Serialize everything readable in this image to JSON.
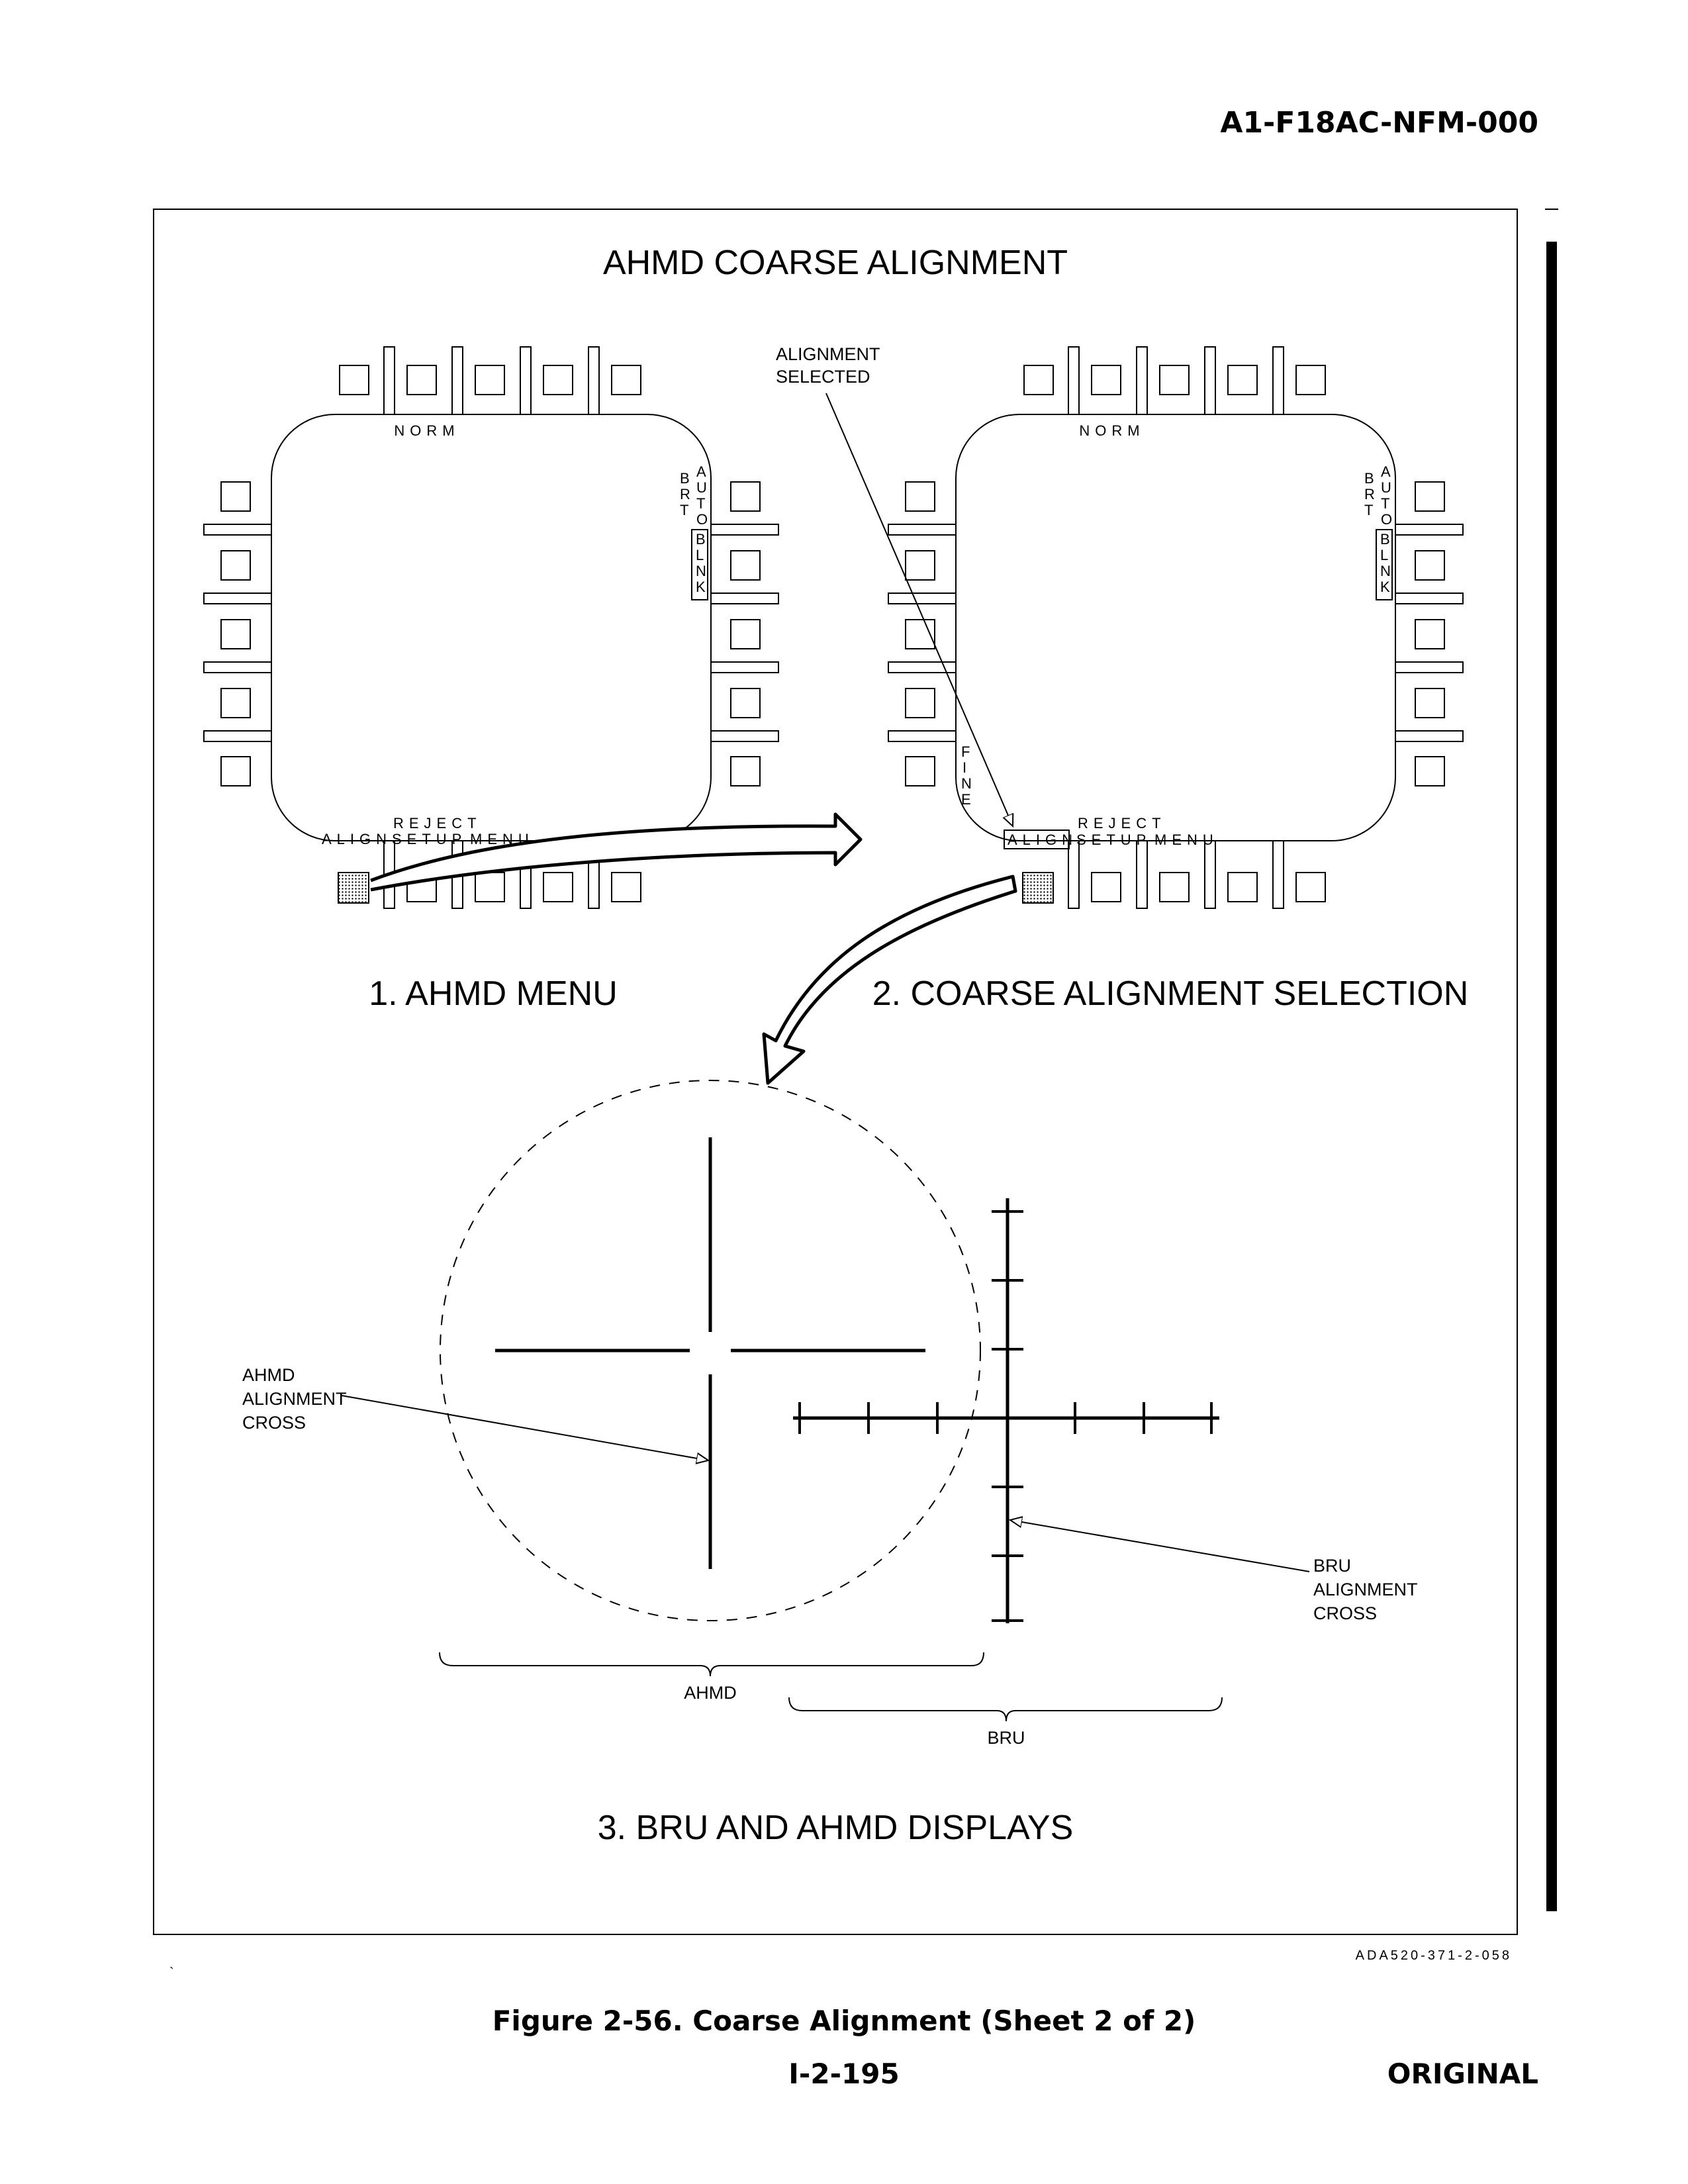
{
  "header": {
    "doc_number": "A1-F18AC-NFM-000"
  },
  "figure": {
    "title": "AHMD COARSE ALIGNMENT",
    "callout_alignment_selected": [
      "ALIGNMENT",
      "SELECTED"
    ],
    "displays": [
      {
        "caption": "1. AHMD MENU",
        "top_label": "NORM",
        "right_label_brt": [
          "B",
          "R",
          "T"
        ],
        "right_label_auto": [
          "A",
          "U",
          "T",
          "O"
        ],
        "right_label_blnk": [
          "B",
          "L",
          "N",
          "K"
        ],
        "reject_label": "REJECT",
        "bottom_labels": {
          "align": "ALIGN",
          "setup": "SETUP",
          "menu": "MENU"
        }
      },
      {
        "caption": "2. COARSE ALIGNMENT SELECTION",
        "top_label": "NORM",
        "right_label_brt": [
          "B",
          "R",
          "T"
        ],
        "right_label_auto": [
          "A",
          "U",
          "T",
          "O"
        ],
        "right_label_blnk": [
          "B",
          "L",
          "N",
          "K"
        ],
        "left_label_fine": [
          "F",
          "I",
          "N",
          "E"
        ],
        "reject_label": "REJECT",
        "bottom_labels": {
          "align": "ALIGN",
          "setup": "SETUP",
          "menu": "MENU"
        }
      }
    ],
    "ahmd_callout": [
      "AHMD",
      "ALIGNMENT",
      "CROSS"
    ],
    "bru_callout": [
      "BRU",
      "ALIGNMENT",
      "CROSS"
    ],
    "brace_ahmd": "AHMD",
    "brace_bru": "BRU",
    "bottom_caption": "3. BRU AND AHMD DISPLAYS",
    "artwork_id": "ADA520-371-2-058"
  },
  "footer": {
    "caption": "Figure 2-56. Coarse Alignment (Sheet 2 of 2)",
    "page_number": "I-2-195",
    "edition": "ORIGINAL"
  }
}
